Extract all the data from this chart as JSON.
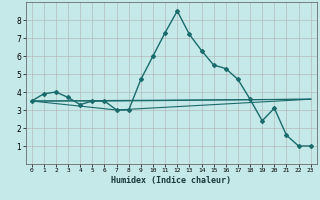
{
  "title": "",
  "xlabel": "Humidex (Indice chaleur)",
  "background_color": "#c5e8e8",
  "grid_color": "#b0b0b0",
  "line_color": "#1a6b6b",
  "xlim": [
    -0.5,
    23.5
  ],
  "ylim": [
    0,
    9
  ],
  "xticks": [
    0,
    1,
    2,
    3,
    4,
    5,
    6,
    7,
    8,
    9,
    10,
    11,
    12,
    13,
    14,
    15,
    16,
    17,
    18,
    19,
    20,
    21,
    22,
    23
  ],
  "yticks": [
    1,
    2,
    3,
    4,
    5,
    6,
    7,
    8
  ],
  "main_x": [
    0,
    1,
    2,
    3,
    4,
    5,
    6,
    7,
    8,
    9,
    10,
    11,
    12,
    13,
    14,
    15,
    16,
    17,
    18,
    19,
    20,
    21,
    22,
    23
  ],
  "main_y": [
    3.5,
    3.9,
    4.0,
    3.7,
    3.3,
    3.5,
    3.5,
    3.0,
    3.0,
    4.7,
    6.0,
    7.3,
    8.5,
    7.2,
    6.3,
    5.5,
    5.3,
    4.7,
    3.6,
    2.4,
    3.1,
    1.6,
    1.0,
    1.0
  ],
  "line1_x": [
    0,
    23
  ],
  "line1_y": [
    3.5,
    3.6
  ],
  "line2_x": [
    0,
    7,
    23
  ],
  "line2_y": [
    3.5,
    3.5,
    3.6
  ],
  "line3_x": [
    0,
    7,
    23
  ],
  "line3_y": [
    3.5,
    3.0,
    3.6
  ]
}
